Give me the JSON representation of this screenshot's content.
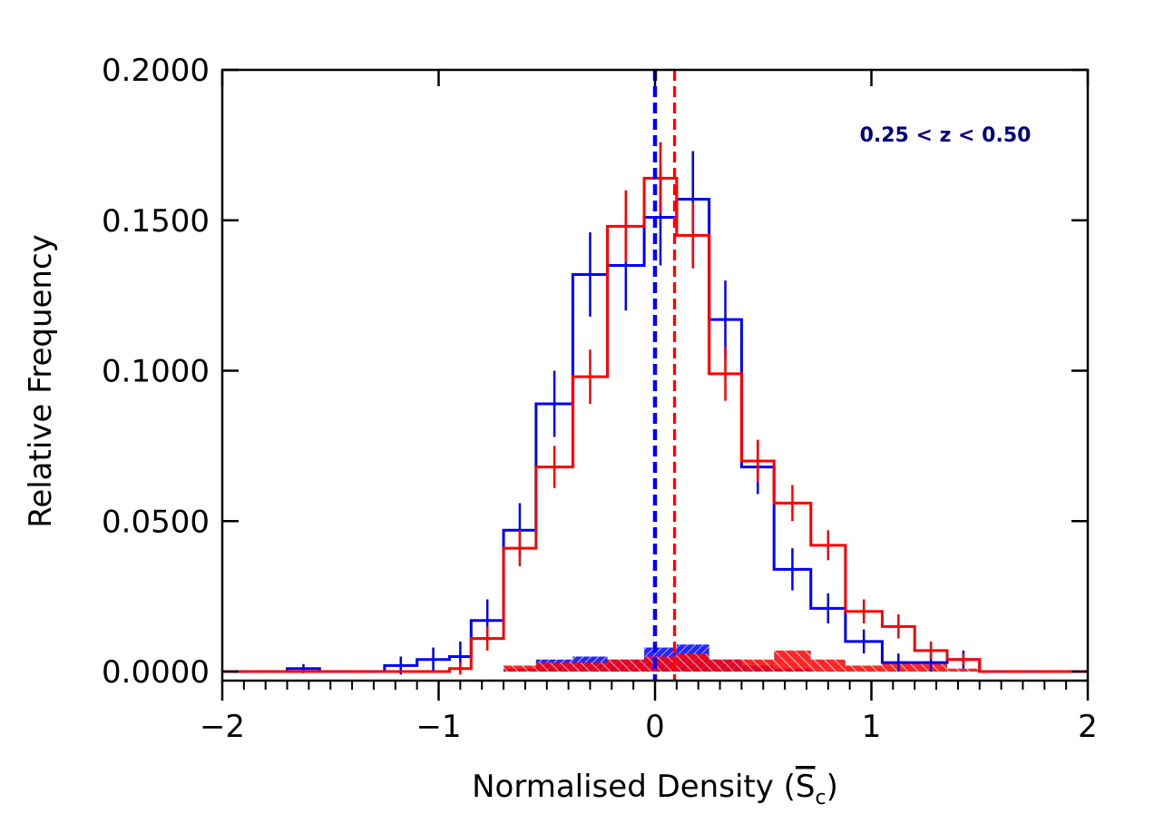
{
  "chart_data": {
    "type": "histogram",
    "xlabel": "Normalised Density (",
    "xlabel_symbol": "S",
    "xlabel_sub": "c",
    "xlabel_close": ")",
    "ylabel": "Relative Frequency",
    "annotation": "0.25 < z < 0.50",
    "xlim": [
      -2,
      2
    ],
    "ylim": [
      -0.003,
      0.2
    ],
    "x_tick_values": [
      -2,
      -1,
      0,
      1,
      2
    ],
    "x_tick_labels": [
      "−2",
      "−1",
      "0",
      "1",
      "2"
    ],
    "y_tick_values": [
      0.0,
      0.05,
      0.1,
      0.15,
      0.2
    ],
    "y_tick_labels": [
      "0.0000",
      "0.0500",
      "0.1000",
      "0.1500",
      "0.2000"
    ],
    "colors": {
      "blue": "#0000ff",
      "red": "#ff0000",
      "axis": "#000000",
      "annotation": "#000080"
    },
    "bin_edges": [
      -2.0,
      -1.85,
      -1.7,
      -1.55,
      -1.4,
      -1.25,
      -1.1,
      -0.95,
      -0.85,
      -0.7,
      -0.55,
      -0.38,
      -0.22,
      -0.05,
      0.1,
      0.25,
      0.4,
      0.55,
      0.72,
      0.88,
      1.05,
      1.2,
      1.35,
      1.5,
      1.65,
      1.85,
      2.0
    ],
    "series": [
      {
        "name": "blue",
        "color": "#0000ff",
        "values": [
          0.0,
          0.0,
          0.001,
          0.0,
          0.0,
          0.002,
          0.004,
          0.005,
          0.017,
          0.047,
          0.089,
          0.132,
          0.135,
          0.151,
          0.157,
          0.117,
          0.068,
          0.034,
          0.021,
          0.01,
          0.003,
          0.003,
          0.004,
          0.0,
          0.0,
          0.0
        ],
        "errors": [
          0.0,
          0.0,
          0.0015,
          0.0,
          0.0,
          0.003,
          0.004,
          0.005,
          0.007,
          0.009,
          0.011,
          0.014,
          0.015,
          0.016,
          0.016,
          0.013,
          0.009,
          0.007,
          0.005,
          0.004,
          0.003,
          0.003,
          0.003,
          0.0,
          0.0,
          0.0
        ],
        "mean": 0.0
      },
      {
        "name": "red",
        "color": "#ff0000",
        "values": [
          0.0,
          0.0,
          0.0,
          0.0,
          0.0,
          0.0,
          0.0,
          0.001,
          0.011,
          0.041,
          0.068,
          0.098,
          0.148,
          0.164,
          0.145,
          0.099,
          0.07,
          0.056,
          0.042,
          0.02,
          0.015,
          0.007,
          0.004,
          0.0,
          0.0,
          0.0
        ],
        "errors": [
          0.0,
          0.0,
          0.0,
          0.0,
          0.0,
          0.0,
          0.0,
          0.002,
          0.004,
          0.006,
          0.007,
          0.009,
          0.012,
          0.012,
          0.011,
          0.009,
          0.007,
          0.006,
          0.005,
          0.004,
          0.004,
          0.003,
          0.002,
          0.0,
          0.0,
          0.0
        ],
        "mean": 0.09
      }
    ],
    "hatched": [
      {
        "name": "blue-shaded",
        "color": "#0000ff",
        "values": [
          0.0,
          0.0,
          0.0,
          0.0,
          0.0,
          0.0,
          0.0,
          0.0,
          0.0,
          0.001,
          0.004,
          0.005,
          0.004,
          0.008,
          0.009,
          0.004,
          0.002,
          0.001,
          0.0,
          0.0,
          0.0,
          0.0,
          0.0,
          0.0,
          0.0,
          0.0
        ]
      },
      {
        "name": "red-shaded",
        "color": "#ff0000",
        "values": [
          0.0,
          0.0,
          0.0,
          0.0,
          0.0,
          0.0,
          0.0,
          0.0,
          0.0,
          0.002,
          0.003,
          0.003,
          0.004,
          0.005,
          0.006,
          0.004,
          0.004,
          0.007,
          0.004,
          0.002,
          0.003,
          0.003,
          0.001,
          0.0,
          0.0,
          0.0
        ]
      }
    ]
  }
}
